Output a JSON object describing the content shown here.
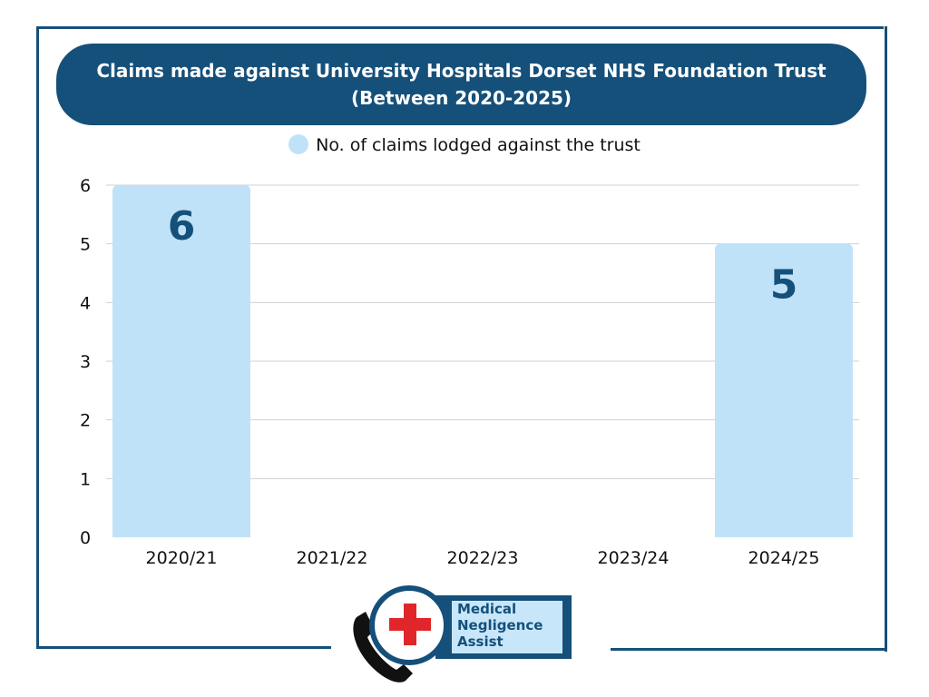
{
  "chart_data": {
    "type": "bar",
    "title": "Claims made against University Hospitals Dorset NHS Foundation Trust",
    "subtitle": "(Between 2020-2025)",
    "categories": [
      "2020/21",
      "2021/22",
      "2022/23",
      "2023/24",
      "2024/25"
    ],
    "series": [
      {
        "name": "No. of claims lodged against the trust",
        "values": [
          6,
          0,
          0,
          0,
          5
        ],
        "color": "#c0e2f8"
      }
    ],
    "data_labels": [
      "6",
      "",
      "",
      "",
      "5"
    ],
    "yticks": [
      "0",
      "1",
      "2",
      "3",
      "4",
      "5",
      "6"
    ],
    "ylim": [
      0,
      6
    ],
    "xlabel": "",
    "ylabel": "",
    "grid": true,
    "legend_position": "top-center"
  },
  "logo": {
    "lines": [
      "Medical",
      "Negligence",
      "Assist"
    ]
  },
  "colors": {
    "brand": "#15507a",
    "bar": "#c0e2f8",
    "label": "#15507a",
    "cross": "#e0262b"
  }
}
